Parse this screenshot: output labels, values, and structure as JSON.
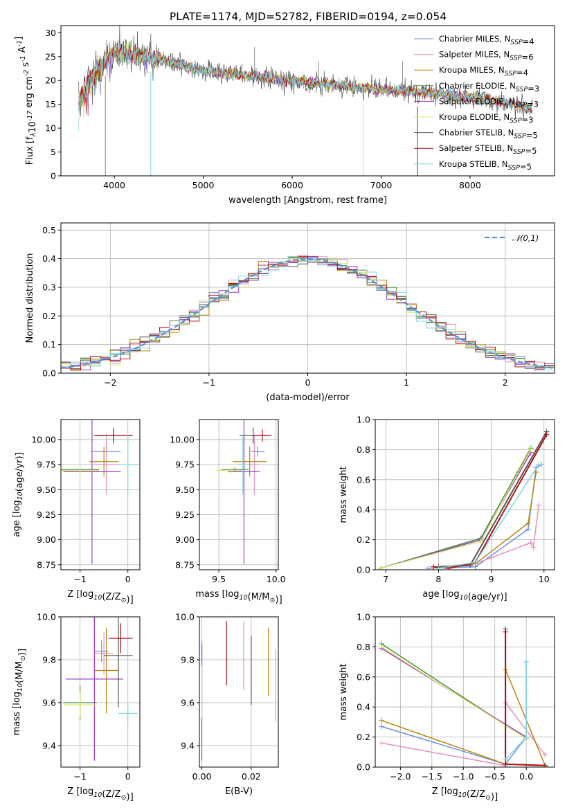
{
  "figure": {
    "title": "PLATE=1174, MJD=52782, FIBERID=0194, z=0.054"
  },
  "models": [
    {
      "name": "Chabrier MILES, N$_{SSP}$=4",
      "label": "Chabrier MILES",
      "nssp": "4",
      "color": "#6f8fdf"
    },
    {
      "name": "Salpeter MILES, N$_{SSP}$=6",
      "label": "Salpeter MILES",
      "nssp": "6",
      "color": "#e58fbf"
    },
    {
      "name": "Kroupa MILES, N$_{SSP}$=4",
      "label": "Kroupa MILES",
      "nssp": "4",
      "color": "#b8860b"
    },
    {
      "name": "Chabrier ELODIE, N$_{SSP}$=3",
      "label": "Chabrier ELODIE",
      "nssp": "3",
      "color": "#4f8f3f"
    },
    {
      "name": "Salpeter ELODIE, N$_{SSP}$=3",
      "label": "Salpeter ELODIE",
      "nssp": "3",
      "color": "#9a3fbf"
    },
    {
      "name": "Kroupa ELODIE, N$_{SSP}$=3",
      "label": "Kroupa ELODIE",
      "nssp": "3",
      "color": "#d8e86f"
    },
    {
      "name": "Chabrier STELIB, N$_{SSP}$=5",
      "label": "Chabrier STELIB",
      "nssp": "5",
      "color": "#555555"
    },
    {
      "name": "Salpeter STELIB, N$_{SSP}$=5",
      "label": "Salpeter STELIB",
      "nssp": "5",
      "color": "#b01010"
    },
    {
      "name": "Kroupa STELIB, N$_{SSP}$=5",
      "label": "Kroupa STELIB",
      "nssp": "5",
      "color": "#7fd7df"
    }
  ],
  "chart_data": [
    {
      "id": "spectrum",
      "type": "line",
      "title": "PLATE=1174, MJD=52782, FIBERID=0194, z=0.054",
      "xlabel": "wavelength [Angstrom, rest frame]",
      "ylabel": "Flux [f$_\\lambda$10$^{-17}$ erg cm$^{-2}$ s$^{-1}$ A$^{-1}$]",
      "xlim": [
        3400,
        8950
      ],
      "ylim": [
        0,
        31.5
      ],
      "xticks": [
        4000,
        5000,
        6000,
        7000,
        8000
      ],
      "yticks": [
        0,
        5,
        10,
        15,
        20,
        25,
        30
      ],
      "legend": "upper-right",
      "envelope": {
        "x": [
          3600,
          3700,
          3800,
          3900,
          4000,
          4200,
          4500,
          5000,
          5500,
          6000,
          6500,
          7000,
          7500,
          8000,
          8500,
          8700
        ],
        "y": [
          15,
          19,
          22,
          24,
          26,
          25.5,
          24.5,
          22,
          21,
          20,
          19,
          18,
          17.5,
          16.5,
          15,
          14
        ]
      },
      "sky_spikes": [
        {
          "x": 5577,
          "y": 27
        },
        {
          "x": 6300,
          "y": 24
        },
        {
          "x": 7241,
          "y": 24
        }
      ],
      "dips": [
        {
          "x": 3900,
          "y": 0
        },
        {
          "x": 4410,
          "y": 0
        },
        {
          "x": 6800,
          "y": 0
        },
        {
          "x": 7410,
          "y": 0
        }
      ]
    },
    {
      "id": "residuals",
      "type": "line",
      "xlabel": "(data-model)/error",
      "ylabel": "Normed distribution",
      "xlim": [
        -2.5,
        2.5
      ],
      "ylim": [
        0,
        0.525
      ],
      "xticks": [
        -2,
        -1,
        0,
        1,
        2
      ],
      "yticks": [
        0.0,
        0.1,
        0.2,
        0.3,
        0.4,
        0.5
      ],
      "grid": true,
      "legend": "upper-right",
      "reference_label": "$\\mathcal{N}(0,1)$",
      "reference": "N(0,1)"
    },
    {
      "id": "age_vs_Z",
      "type": "scatter",
      "xlabel": "Z [log$_{10}$(Z/Z$_\\odot$)]",
      "ylabel": "age  [log$_{10}$(age/yr)]",
      "xlim": [
        -1.4,
        0.25
      ],
      "ylim": [
        8.7,
        10.2
      ],
      "xticks": [
        -1,
        0
      ],
      "yticks": [
        8.75,
        9.0,
        9.25,
        9.5,
        9.75,
        10.0
      ],
      "grid": true,
      "points": [
        {
          "model": 0,
          "x": -0.45,
          "y": 9.88,
          "xerr": 0.3,
          "yerr": 0.05
        },
        {
          "model": 1,
          "x": -0.45,
          "y": 9.75,
          "xerr": 0.25,
          "yerr": 0.3
        },
        {
          "model": 2,
          "x": -0.5,
          "y": 9.78,
          "xerr": 0.3,
          "yerr": 0.15
        },
        {
          "model": 3,
          "x": -1.0,
          "y": 9.7,
          "xerr": 0.4,
          "yerr": 0.02
        },
        {
          "model": 4,
          "x": -0.75,
          "y": 9.68,
          "xerr": 0.6,
          "yerr": 0.92
        },
        {
          "model": 5,
          "x": -1.0,
          "y": 9.69,
          "xerr": 0.4,
          "yerr": 0.03
        },
        {
          "model": 6,
          "x": -0.3,
          "y": 10.04,
          "xerr": 0.4,
          "yerr": 0.08
        },
        {
          "model": 7,
          "x": -0.3,
          "y": 10.04,
          "xerr": 0.4,
          "yerr": 0.06
        },
        {
          "model": 8,
          "x": 0.0,
          "y": 9.75,
          "xerr": 0.2,
          "yerr": 0.3
        }
      ]
    },
    {
      "id": "age_vs_mass",
      "type": "scatter",
      "xlabel": "mass [log$_{10}$(M/M$_\\odot$)]",
      "ylabel": "",
      "xlim": [
        9.33,
        10.02
      ],
      "ylim": [
        8.7,
        10.2
      ],
      "xticks": [
        9.5,
        10.0
      ],
      "yticks": [
        8.75,
        9.0,
        9.25,
        9.5,
        9.75,
        10.0
      ],
      "grid": true,
      "points": [
        {
          "model": 0,
          "x": 9.84,
          "y": 9.88,
          "xerr": 0.06,
          "yerr": 0.05
        },
        {
          "model": 1,
          "x": 9.81,
          "y": 9.75,
          "xerr": 0.05,
          "yerr": 0.3
        },
        {
          "model": 2,
          "x": 9.77,
          "y": 9.78,
          "xerr": 0.15,
          "yerr": 0.15
        },
        {
          "model": 3,
          "x": 9.64,
          "y": 9.7,
          "xerr": 0.12,
          "yerr": 0.02
        },
        {
          "model": 4,
          "x": 9.72,
          "y": 9.68,
          "xerr": 0.14,
          "yerr": 0.92
        },
        {
          "model": 5,
          "x": 9.6,
          "y": 9.69,
          "xerr": 0.12,
          "yerr": 0.03
        },
        {
          "model": 6,
          "x": 9.8,
          "y": 10.04,
          "xerr": 0.12,
          "yerr": 0.08
        },
        {
          "model": 7,
          "x": 9.88,
          "y": 10.04,
          "xerr": 0.08,
          "yerr": 0.06
        },
        {
          "model": 8,
          "x": 9.71,
          "y": 9.75,
          "xerr": 0.05,
          "yerr": 0.3
        }
      ]
    },
    {
      "id": "massweight_vs_age",
      "type": "line",
      "xlabel": "age  [log$_{10}$(age/yr)]",
      "ylabel": "mass weight",
      "xlim": [
        6.8,
        10.2
      ],
      "ylim": [
        0,
        1.0
      ],
      "xticks": [
        7,
        8,
        9,
        10
      ],
      "yticks": [
        0.0,
        0.2,
        0.4,
        0.6,
        0.8,
        1.0
      ],
      "grid": true,
      "series": [
        {
          "model": 0,
          "x": [
            7.8,
            8.7,
            9.7,
            9.85,
            9.95
          ],
          "y": [
            0.01,
            0.02,
            0.27,
            0.68,
            0.7
          ]
        },
        {
          "model": 1,
          "x": [
            7.9,
            8.6,
            9.0,
            9.75,
            9.8,
            9.9
          ],
          "y": [
            0.01,
            0.03,
            0.08,
            0.18,
            0.15,
            0.43
          ]
        },
        {
          "model": 2,
          "x": [
            8.0,
            8.7,
            9.7,
            9.85
          ],
          "y": [
            0.02,
            0.04,
            0.31,
            0.65
          ]
        },
        {
          "model": 3,
          "x": [
            6.9,
            8.8,
            9.75
          ],
          "y": [
            0.01,
            0.21,
            0.81
          ]
        },
        {
          "model": 4,
          "x": [
            6.9,
            8.8,
            9.75
          ],
          "y": [
            0.01,
            0.2,
            0.78
          ]
        },
        {
          "model": 5,
          "x": [
            6.9,
            8.8,
            9.75
          ],
          "y": [
            0.01,
            0.19,
            0.8
          ]
        },
        {
          "model": 6,
          "x": [
            8.0,
            8.6,
            10.05
          ],
          "y": [
            0.02,
            0.03,
            0.92
          ]
        },
        {
          "model": 7,
          "x": [
            7.9,
            8.2,
            8.7,
            10.05
          ],
          "y": [
            0.02,
            0.01,
            0.05,
            0.9
          ]
        },
        {
          "model": 8,
          "x": [
            8.0,
            8.7,
            9.9
          ],
          "y": [
            0.01,
            0.05,
            0.7
          ]
        }
      ]
    },
    {
      "id": "mass_vs_Z",
      "type": "scatter",
      "xlabel": "Z [log$_{10}$(Z/Z$_\\odot$)]",
      "ylabel": "mass [log$_{10}$(M/M$_\\odot$)]",
      "xlim": [
        -1.4,
        0.25
      ],
      "ylim": [
        9.3,
        10.0
      ],
      "xticks": [
        -1,
        0
      ],
      "yticks": [
        9.4,
        9.6,
        9.8,
        10.0
      ],
      "grid": true,
      "points": [
        {
          "model": 0,
          "x": -0.55,
          "y": 9.84,
          "xerr": 0.15,
          "yerr": 0.05
        },
        {
          "model": 1,
          "x": -0.5,
          "y": 9.83,
          "xerr": 0.2,
          "yerr": 0.1
        },
        {
          "model": 2,
          "x": -0.45,
          "y": 9.75,
          "xerr": 0.25,
          "yerr": 0.2
        },
        {
          "model": 3,
          "x": -1.0,
          "y": 9.6,
          "xerr": 0.35,
          "yerr": 0.08
        },
        {
          "model": 4,
          "x": -0.7,
          "y": 9.71,
          "xerr": 0.6,
          "yerr": 0.38
        },
        {
          "model": 5,
          "x": -1.0,
          "y": 9.59,
          "xerr": 0.35,
          "yerr": 0.06
        },
        {
          "model": 6,
          "x": -0.2,
          "y": 9.82,
          "xerr": 0.3,
          "yerr": 0.24
        },
        {
          "model": 7,
          "x": -0.15,
          "y": 9.9,
          "xerr": 0.25,
          "yerr": 0.07
        },
        {
          "model": 8,
          "x": 0.0,
          "y": 9.55,
          "xerr": 0.2,
          "yerr": 0.04
        }
      ]
    },
    {
      "id": "mass_vs_EBV",
      "type": "scatter",
      "xlabel": "E(B-V)",
      "ylabel": "",
      "xlim": [
        -0.001,
        0.031
      ],
      "ylim": [
        9.3,
        10.0
      ],
      "xticks": [
        0.0,
        0.02
      ],
      "yticks": [
        9.4,
        9.6,
        9.8,
        10.0
      ],
      "grid": true,
      "points": [
        {
          "model": 0,
          "x": 0.0,
          "y": 9.84,
          "yerr": 0.05
        },
        {
          "model": 1,
          "x": 0.017,
          "y": 9.82,
          "yerr": 0.16
        },
        {
          "model": 2,
          "x": 0.027,
          "y": 9.79,
          "yerr": 0.16
        },
        {
          "model": 3,
          "x": 0.0,
          "y": 9.65,
          "yerr": 0.1
        },
        {
          "model": 4,
          "x": 0.0,
          "y": 9.6,
          "yerr": 0.27
        },
        {
          "model": 5,
          "x": 0.0,
          "y": 9.65,
          "yerr": 0.12
        },
        {
          "model": 6,
          "x": 0.02,
          "y": 9.75,
          "yerr": 0.16
        },
        {
          "model": 7,
          "x": 0.01,
          "y": 9.83,
          "yerr": 0.15
        },
        {
          "model": 8,
          "x": 0.03,
          "y": 9.68,
          "yerr": 0.17
        }
      ]
    },
    {
      "id": "massweight_vs_Z",
      "type": "line",
      "xlabel": "Z [log$_{10}$(Z/Z$_\\odot$)]",
      "ylabel": "mass weight",
      "xlim": [
        -2.4,
        0.45
      ],
      "ylim": [
        0,
        1.0
      ],
      "xticks": [
        -2.0,
        -1.5,
        -1.0,
        -0.5,
        0.0
      ],
      "yticks": [
        0.0,
        0.2,
        0.4,
        0.6,
        0.8,
        1.0
      ],
      "grid": true,
      "series": [
        {
          "model": 0,
          "x": [
            -2.3,
            -0.33,
            0.0,
            0.0
          ],
          "y": [
            0.27,
            0.02,
            0.2,
            0.7
          ]
        },
        {
          "model": 1,
          "x": [
            -2.3,
            -0.33,
            -0.33,
            0.3
          ],
          "y": [
            0.16,
            0.01,
            0.43,
            0.08
          ]
        },
        {
          "model": 2,
          "x": [
            -2.3,
            -0.33,
            -0.33,
            0.3
          ],
          "y": [
            0.31,
            0.02,
            0.65,
            0.01
          ]
        },
        {
          "model": 3,
          "x": [
            -2.3,
            0.0
          ],
          "y": [
            0.82,
            0.19
          ]
        },
        {
          "model": 4,
          "x": [
            -2.3,
            0.0
          ],
          "y": [
            0.79,
            0.2
          ]
        },
        {
          "model": 5,
          "x": [
            -2.3,
            0.0
          ],
          "y": [
            0.8,
            0.19
          ]
        },
        {
          "model": 6,
          "x": [
            -0.33,
            -0.33,
            0.3
          ],
          "y": [
            0.92,
            0.02,
            0.01
          ]
        },
        {
          "model": 7,
          "x": [
            -0.33,
            -0.33,
            0.3
          ],
          "y": [
            0.9,
            0.02,
            0.01
          ]
        },
        {
          "model": 8,
          "x": [
            -0.33,
            0.0,
            0.0
          ],
          "y": [
            0.05,
            0.2,
            0.7
          ]
        }
      ]
    }
  ]
}
